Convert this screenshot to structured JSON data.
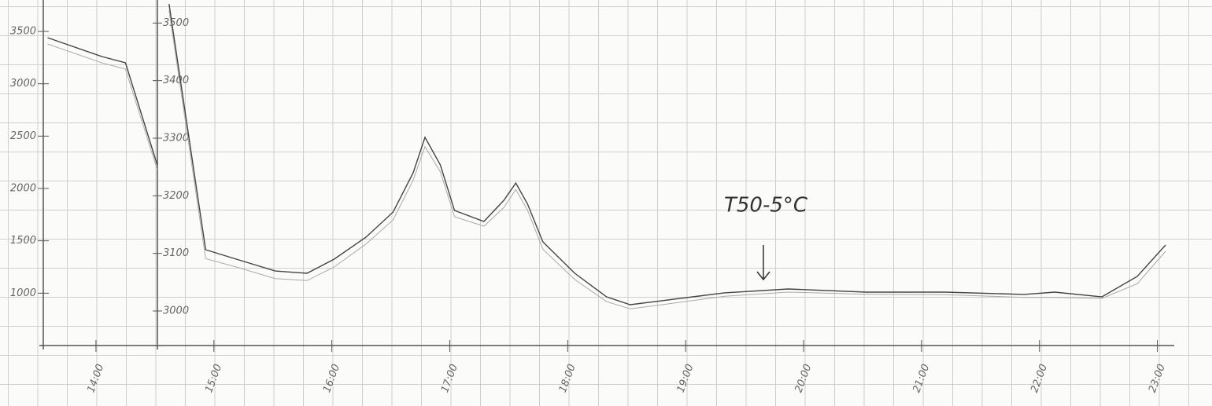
{
  "chart_data": {
    "type": "line",
    "annotation": "T50-5°C",
    "x": [
      13.59,
      14.05,
      14.25,
      14.52,
      null,
      14.62,
      14.93,
      15.19,
      15.52,
      15.79,
      16.02,
      16.29,
      16.52,
      16.69,
      16.79,
      16.92,
      17.04,
      17.29,
      17.46,
      17.56,
      17.66,
      17.79,
      18.06,
      18.33,
      18.53,
      18.8,
      19.33,
      19.87,
      20.53,
      21.2,
      21.87,
      22.13,
      22.53,
      22.83,
      23.07
    ],
    "series": [
      {
        "color": "#444444",
        "values": [
          3440,
          3260,
          3200,
          2225,
          null,
          3762,
          1415,
          1325,
          1212,
          1190,
          1325,
          1535,
          1775,
          2150,
          2488,
          2225,
          1790,
          1685,
          1888,
          2052,
          1850,
          1490,
          1190,
          965,
          890,
          928,
          1003,
          1040,
          1010,
          1010,
          988,
          1010,
          965,
          1160,
          1460
        ]
      },
      {
        "color": "#aaaaaa",
        "values": [
          3380,
          3200,
          3140,
          2180,
          null,
          3700,
          1330,
          1250,
          1140,
          1120,
          1250,
          1470,
          1700,
          2080,
          2400,
          2160,
          1730,
          1640,
          1820,
          1990,
          1790,
          1420,
          1130,
          920,
          850,
          890,
          970,
          1010,
          990,
          985,
          960,
          960,
          950,
          1090,
          1400
        ]
      }
    ],
    "xlim": [
      13.52,
      23.13
    ],
    "xticks": [
      {
        "value": 14,
        "label": "14:00"
      },
      {
        "value": 15,
        "label": "15:00"
      },
      {
        "value": 16,
        "label": "16:00"
      },
      {
        "value": 17,
        "label": "17:00"
      },
      {
        "value": 18,
        "label": "18:00"
      },
      {
        "value": 19,
        "label": "19:00"
      },
      {
        "value": 20,
        "label": "20:00"
      },
      {
        "value": 21,
        "label": "21:00"
      },
      {
        "value": 22,
        "label": "22:00"
      },
      {
        "value": 23,
        "label": "23:00"
      }
    ],
    "ylim": [
      500,
      3800
    ],
    "yticks": [
      3500,
      3000,
      2500,
      2000,
      1500,
      1000
    ],
    "y2lim": [
      2940,
      3540
    ],
    "y2ticks": [
      3500,
      3400,
      3300,
      3200,
      3100,
      3000
    ]
  }
}
